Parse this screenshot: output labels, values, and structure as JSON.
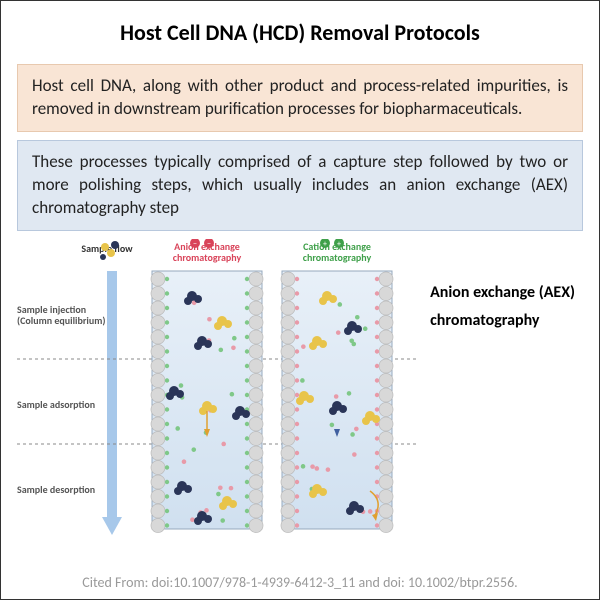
{
  "title": "Host Cell DNA (HCD) Removal Protocols",
  "box1": {
    "text": "Host cell DNA, along with other product and process-related impurities, is removed in downstream purification processes for biopharmaceuticals.",
    "bg": "#f9e5d5",
    "border": "#e8c9af"
  },
  "box2": {
    "text": "These processes typically comprised of a capture step followed by two or more polishing steps, which usually includes an anion exchange (AEX) chromatography step",
    "bg": "#e0e8f2",
    "border": "#b8c8dd"
  },
  "side_label_1": "Anion exchange (AEX)",
  "side_label_2": "chromatography",
  "citation": "Cited From: doi:10.1007/978-1-4939-6412-3_11 and doi: 10.1002/btpr.2556.",
  "diagram": {
    "sample_flow_label": "Sample flow",
    "anion_label": "Anion exchange chromatography",
    "cation_label": "Cation exchange chromatography",
    "anion_label_color": "#d9445a",
    "cation_label_color": "#3fa04a",
    "stage1": "Sample injection (Column equilibrium)",
    "stage2": "Sample adsorption",
    "stage3": "Sample desorption",
    "arrow_color": "#a7c8ea",
    "column_bg": "#e8f0f8",
    "column_bg_grad": "#d0e0f0",
    "bead_color": "#d8d8d8",
    "bead_stroke": "#bbbbbb",
    "pos_charge": "#d9445a",
    "neg_charge": "#3fa04a",
    "protein_dark": "#2a3558",
    "protein_yellow": "#e8c44a",
    "small_pink": "#e89aa8",
    "small_green": "#7fc888",
    "dash_color": "#888888"
  }
}
